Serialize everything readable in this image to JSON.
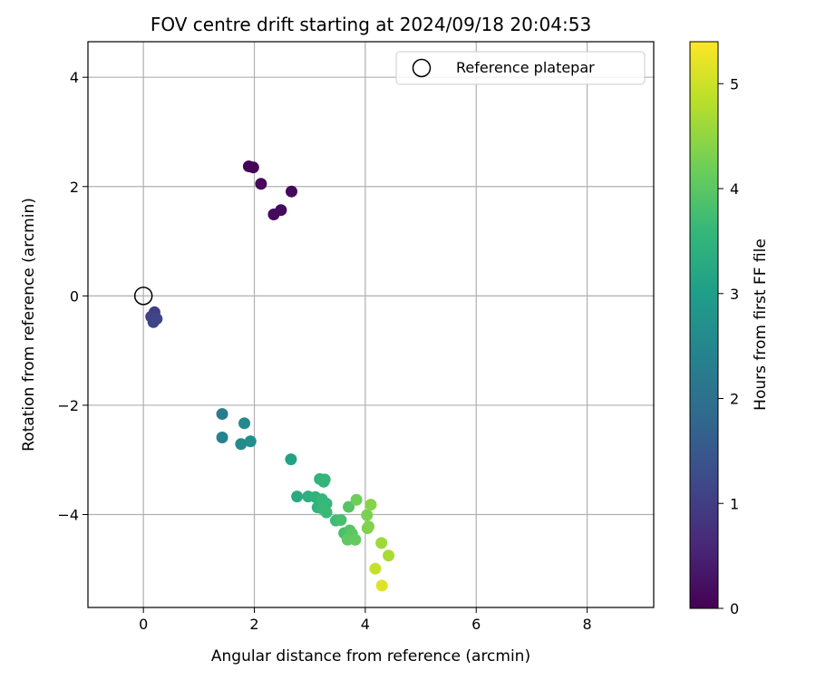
{
  "chart_data": {
    "type": "scatter",
    "title": "FOV centre drift starting at 2024/09/18 20:04:53",
    "xlabel": "Angular distance from reference (arcmin)",
    "ylabel": "Rotation from reference (arcmin)",
    "xlim": [
      -1.0,
      9.2
    ],
    "ylim": [
      -5.7,
      4.65
    ],
    "xticks": [
      0,
      2,
      4,
      6,
      8
    ],
    "xtick_labels": [
      "0",
      "2",
      "4",
      "6",
      "8"
    ],
    "yticks": [
      4,
      2,
      0,
      -2,
      -4
    ],
    "ytick_labels": [
      "4",
      "2",
      "0",
      "−2",
      "−4"
    ],
    "grid": true,
    "legend": {
      "placement": "top-right",
      "entries": [
        "Reference platepar"
      ]
    },
    "reference_point": {
      "x": 0.0,
      "y": 0.0,
      "label": "Reference platepar",
      "marker": "open-circle"
    },
    "colorbar": {
      "label": "Hours from first FF file",
      "colormap": "viridis",
      "range": [
        0,
        5.4
      ],
      "ticks": [
        0,
        1,
        2,
        3,
        4,
        5
      ],
      "tick_labels": [
        "0",
        "1",
        "2",
        "3",
        "4",
        "5"
      ]
    },
    "series": [
      {
        "x": [
          1.9,
          1.98,
          2.12,
          2.67,
          2.35,
          2.48,
          0.2,
          0.14,
          0.18,
          0.24,
          1.42,
          1.42,
          1.82,
          1.76,
          1.93,
          2.66,
          2.77,
          2.97,
          3.1,
          3.14,
          3.18,
          3.27,
          3.25,
          3.22,
          3.3,
          3.24,
          3.3,
          3.47,
          3.56,
          3.62,
          3.7,
          3.72,
          3.76,
          3.68,
          3.84,
          3.82,
          4.03,
          4.06,
          4.1,
          4.04,
          4.29,
          4.42,
          4.18,
          4.3
        ],
        "y": [
          2.37,
          2.35,
          2.05,
          1.91,
          1.49,
          1.57,
          -0.3,
          -0.38,
          -0.48,
          -0.42,
          -2.16,
          -2.59,
          -2.33,
          -2.71,
          -2.66,
          -2.99,
          -3.67,
          -3.67,
          -3.68,
          -3.87,
          -3.35,
          -3.36,
          -3.4,
          -3.72,
          -3.8,
          -3.9,
          -3.96,
          -4.11,
          -4.1,
          -4.34,
          -3.86,
          -4.29,
          -4.35,
          -4.46,
          -3.73,
          -4.46,
          -4.01,
          -4.22,
          -3.82,
          -4.25,
          -4.52,
          -4.75,
          -4.99,
          -5.3
        ],
        "hours": [
          0.05,
          0.07,
          0.1,
          0.12,
          0.15,
          0.17,
          1.0,
          1.05,
          1.1,
          1.15,
          2.3,
          2.4,
          2.55,
          2.6,
          2.65,
          3.1,
          3.3,
          3.4,
          3.45,
          3.5,
          3.5,
          3.55,
          3.55,
          3.6,
          3.6,
          3.65,
          3.65,
          3.7,
          3.8,
          3.8,
          3.95,
          3.9,
          4.0,
          4.05,
          4.2,
          4.1,
          4.3,
          4.35,
          4.4,
          4.35,
          4.6,
          4.7,
          4.95,
          5.15
        ]
      }
    ]
  }
}
